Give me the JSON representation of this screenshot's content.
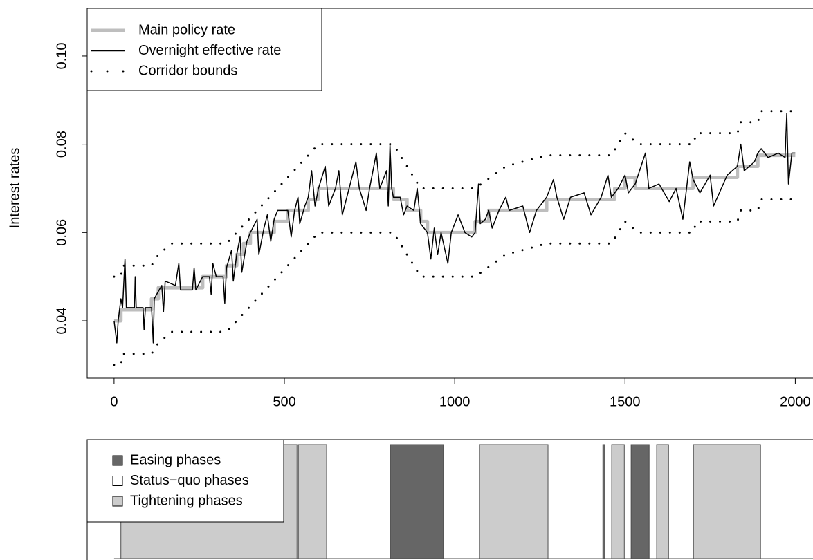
{
  "chart_data": [
    {
      "type": "line",
      "ylabel": "Interest rates",
      "xlim": [
        -79,
        2052
      ],
      "ylim": [
        0.027,
        0.1108
      ],
      "xticks": [
        0,
        500,
        1000,
        1500,
        2000
      ],
      "yticks": [
        0.04,
        0.06,
        0.08,
        {
          "value": 0.1,
          "label": "0.10"
        }
      ],
      "legend": "top-left",
      "series": [
        {
          "name": "Main policy rate",
          "color": "#bebebe",
          "style": "step",
          "x": [
            0,
            20,
            110,
            130,
            260,
            330,
            360,
            380,
            400,
            470,
            510,
            570,
            600,
            820,
            860,
            900,
            920,
            1060,
            1100,
            1270,
            1470,
            1500,
            1530,
            1700,
            1830,
            1890,
            2000
          ],
          "values": [
            0.04,
            0.0425,
            0.045,
            0.0475,
            0.05,
            0.0525,
            0.055,
            0.0575,
            0.06,
            0.0625,
            0.065,
            0.0675,
            0.07,
            0.0675,
            0.065,
            0.0625,
            0.06,
            0.0625,
            0.065,
            0.0675,
            0.07,
            0.0725,
            0.07,
            0.0725,
            0.075,
            0.0775,
            0.0775
          ]
        },
        {
          "name": "Overnight effective rate",
          "color": "#000000",
          "style": "solid",
          "x": [
            0,
            8,
            12,
            20,
            25,
            32,
            36,
            60,
            62,
            65,
            85,
            88,
            92,
            110,
            115,
            118,
            125,
            140,
            145,
            150,
            180,
            190,
            195,
            230,
            235,
            240,
            260,
            280,
            285,
            290,
            300,
            320,
            325,
            330,
            345,
            350,
            360,
            370,
            375,
            390,
            400,
            420,
            425,
            440,
            450,
            460,
            470,
            480,
            510,
            520,
            530,
            540,
            545,
            560,
            570,
            580,
            590,
            600,
            620,
            630,
            650,
            660,
            670,
            690,
            710,
            720,
            740,
            750,
            770,
            780,
            800,
            805,
            810,
            815,
            820,
            840,
            850,
            860,
            880,
            890,
            900,
            920,
            930,
            940,
            950,
            960,
            980,
            990,
            1010,
            1030,
            1050,
            1060,
            1070,
            1075,
            1090,
            1100,
            1110,
            1130,
            1150,
            1160,
            1200,
            1220,
            1240,
            1270,
            1290,
            1300,
            1320,
            1340,
            1380,
            1400,
            1430,
            1450,
            1460,
            1480,
            1500,
            1510,
            1530,
            1560,
            1570,
            1600,
            1630,
            1650,
            1670,
            1690,
            1700,
            1720,
            1750,
            1760,
            1800,
            1830,
            1840,
            1850,
            1880,
            1890,
            1900,
            1920,
            1950,
            1970,
            1975,
            1980,
            1990,
            2000
          ],
          "values": [
            0.04,
            0.035,
            0.04,
            0.045,
            0.043,
            0.054,
            0.043,
            0.043,
            0.05,
            0.043,
            0.043,
            0.038,
            0.043,
            0.043,
            0.035,
            0.045,
            0.046,
            0.048,
            0.042,
            0.049,
            0.048,
            0.053,
            0.047,
            0.047,
            0.052,
            0.047,
            0.05,
            0.05,
            0.046,
            0.053,
            0.05,
            0.05,
            0.044,
            0.052,
            0.056,
            0.049,
            0.055,
            0.059,
            0.051,
            0.058,
            0.06,
            0.063,
            0.055,
            0.061,
            0.064,
            0.058,
            0.063,
            0.065,
            0.065,
            0.059,
            0.065,
            0.068,
            0.062,
            0.066,
            0.068,
            0.074,
            0.066,
            0.07,
            0.075,
            0.066,
            0.07,
            0.074,
            0.064,
            0.07,
            0.076,
            0.07,
            0.065,
            0.07,
            0.078,
            0.07,
            0.074,
            0.066,
            0.08,
            0.07,
            0.068,
            0.068,
            0.064,
            0.066,
            0.065,
            0.07,
            0.062,
            0.06,
            0.054,
            0.061,
            0.055,
            0.06,
            0.053,
            0.06,
            0.064,
            0.06,
            0.059,
            0.06,
            0.071,
            0.062,
            0.063,
            0.065,
            0.061,
            0.065,
            0.068,
            0.065,
            0.066,
            0.06,
            0.065,
            0.068,
            0.072,
            0.068,
            0.063,
            0.068,
            0.069,
            0.064,
            0.068,
            0.073,
            0.068,
            0.07,
            0.073,
            0.069,
            0.071,
            0.078,
            0.07,
            0.071,
            0.067,
            0.07,
            0.063,
            0.076,
            0.072,
            0.069,
            0.073,
            0.066,
            0.073,
            0.075,
            0.08,
            0.074,
            0.076,
            0.078,
            0.079,
            0.077,
            0.078,
            0.077,
            0.087,
            0.071,
            0.078,
            0.078
          ]
        },
        {
          "name": "Corridor bounds",
          "color": "#000000",
          "style": "dotted",
          "x": [
            0,
            20,
            25,
            110,
            130,
            170,
            330,
            600,
            820,
            900,
            1060,
            1150,
            1270,
            1460,
            1500,
            1540,
            1700,
            1710,
            1830,
            1840,
            1890,
            1900,
            2000
          ],
          "values": [
            0.05,
            0.05,
            0.0525,
            0.0525,
            0.055,
            0.0575,
            0.0575,
            0.08,
            0.08,
            0.07,
            0.07,
            0.075,
            0.0775,
            0.0775,
            0.0825,
            0.08,
            0.08,
            0.0825,
            0.0825,
            0.085,
            0.085,
            0.0875,
            0.0875
          ],
          "lower": [
            0.03,
            0.03,
            0.0325,
            0.0325,
            0.035,
            0.0375,
            0.0375,
            0.06,
            0.06,
            0.05,
            0.05,
            0.055,
            0.0575,
            0.0575,
            0.0625,
            0.06,
            0.06,
            0.0625,
            0.0625,
            0.065,
            0.065,
            0.0675,
            0.0675
          ]
        }
      ]
    },
    {
      "type": "phase",
      "xlim": [
        -79,
        2052
      ],
      "legend": "top-left",
      "series": [
        {
          "name": "Easing phases",
          "color": "#666666"
        },
        {
          "name": "Status−quo phases",
          "color": "#ffffff"
        },
        {
          "name": "Tightening phases",
          "color": "#cccccc"
        }
      ],
      "phases": [
        {
          "start": 20,
          "end": 537,
          "series": 2
        },
        {
          "start": 541,
          "end": 624,
          "series": 2
        },
        {
          "start": 811,
          "end": 967,
          "series": 0
        },
        {
          "start": 1073,
          "end": 1274,
          "series": 2
        },
        {
          "start": 1435,
          "end": 1441,
          "series": 0
        },
        {
          "start": 1461,
          "end": 1498,
          "series": 2
        },
        {
          "start": 1518,
          "end": 1571,
          "series": 0
        },
        {
          "start": 1593,
          "end": 1628,
          "series": 2
        },
        {
          "start": 1701,
          "end": 1898,
          "series": 2
        }
      ]
    }
  ]
}
